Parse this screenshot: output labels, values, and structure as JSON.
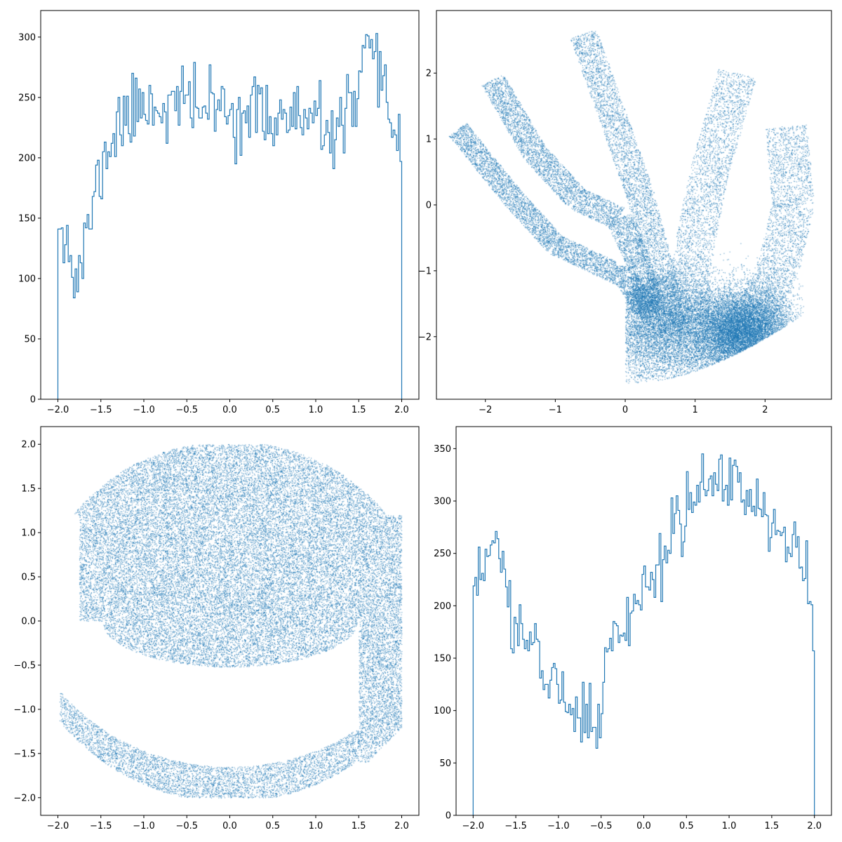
{
  "chart_data": [
    {
      "type": "histogram",
      "panel": "top-left",
      "histtype": "step",
      "color": "#1f77b4",
      "xlim": [
        -2.2,
        2.2
      ],
      "ylim": [
        0,
        322
      ],
      "xticks": [
        -2.0,
        -1.5,
        -1.0,
        -0.5,
        0.0,
        0.5,
        1.0,
        1.5,
        2.0
      ],
      "xtick_labels": [
        "−2.0",
        "−1.5",
        "−1.0",
        "−0.5",
        "0.0",
        "0.5",
        "1.0",
        "1.5",
        "2.0"
      ],
      "yticks": [
        0,
        50,
        100,
        150,
        200,
        250,
        300
      ],
      "ytick_labels": [
        "0",
        "50",
        "100",
        "150",
        "200",
        "250",
        "300"
      ],
      "bin_range": [
        -2.0,
        2.0
      ],
      "knots": [
        [
          -2.0,
          160
        ],
        [
          -1.9,
          140
        ],
        [
          -1.85,
          112
        ],
        [
          -1.8,
          95
        ],
        [
          -1.75,
          108
        ],
        [
          -1.7,
          118
        ],
        [
          -1.6,
          160
        ],
        [
          -1.5,
          188
        ],
        [
          -1.4,
          210
        ],
        [
          -1.3,
          228
        ],
        [
          -1.1,
          238
        ],
        [
          -1.0,
          248
        ],
        [
          -0.8,
          242
        ],
        [
          -0.5,
          246
        ],
        [
          0.0,
          238
        ],
        [
          0.5,
          235
        ],
        [
          1.0,
          228
        ],
        [
          1.15,
          215
        ],
        [
          1.3,
          232
        ],
        [
          1.45,
          240
        ],
        [
          1.6,
          285
        ],
        [
          1.7,
          268
        ],
        [
          1.8,
          250
        ],
        [
          1.9,
          232
        ],
        [
          2.0,
          210
        ]
      ],
      "bins": 200,
      "seed": 11,
      "noise": 15
    },
    {
      "type": "scatter",
      "panel": "top-right",
      "marker": "pixel",
      "color": "#1f77b4",
      "xlim": [
        -2.7,
        2.95
      ],
      "ylim": [
        -2.95,
        2.95
      ],
      "xticks": [
        -2,
        -1,
        0,
        1,
        2
      ],
      "xtick_labels": [
        "−2",
        "−1",
        "0",
        "1",
        "2"
      ],
      "yticks": [
        -2,
        -1,
        0,
        1,
        2
      ],
      "ytick_labels": [
        "−2",
        "−1",
        "0",
        "1",
        "2"
      ],
      "clusters": [
        {
          "x": 1.7,
          "y": -1.9,
          "sx": 0.35,
          "sy": 0.3,
          "n": 9000
        },
        {
          "x": 1.0,
          "y": -2.0,
          "sx": 0.7,
          "sy": 0.45,
          "n": 9000
        },
        {
          "x": 0.3,
          "y": -1.5,
          "sx": 0.3,
          "sy": 0.5,
          "n": 4000
        }
      ],
      "bands": [
        {
          "path": [
            [
              -2.4,
              1.15
            ],
            [
              -1.6,
              0.1
            ],
            [
              -1.0,
              -0.6
            ],
            [
              -0.4,
              -0.9
            ],
            [
              0.0,
              -1.1
            ],
            [
              0.3,
              -1.6
            ]
          ],
          "width": 0.16,
          "n": 4500
        },
        {
          "path": [
            [
              -1.9,
              1.9
            ],
            [
              -1.3,
              0.8
            ],
            [
              -0.7,
              0.1
            ],
            [
              -0.1,
              -0.2
            ],
            [
              0.2,
              -0.9
            ],
            [
              0.4,
              -1.7
            ]
          ],
          "width": 0.18,
          "n": 5000
        },
        {
          "path": [
            [
              -0.6,
              2.6
            ],
            [
              -0.2,
              1.4
            ],
            [
              0.2,
              0.2
            ],
            [
              0.5,
              -1.0
            ],
            [
              0.7,
              -2.0
            ]
          ],
          "width": 0.2,
          "n": 4000
        },
        {
          "path": [
            [
              1.6,
              2.0
            ],
            [
              1.2,
              0.5
            ],
            [
              0.95,
              -0.8
            ],
            [
              0.9,
              -1.8
            ]
          ],
          "width": 0.28,
          "n": 3000
        },
        {
          "path": [
            [
              2.3,
              1.2
            ],
            [
              2.4,
              0.0
            ],
            [
              2.2,
              -0.9
            ],
            [
              1.9,
              -1.6
            ]
          ],
          "width": 0.3,
          "n": 2500
        }
      ],
      "seed": 5
    },
    {
      "type": "scatter",
      "panel": "bottom-left",
      "marker": "pixel",
      "color": "#1f77b4",
      "xlim": [
        -2.2,
        2.2
      ],
      "ylim": [
        -2.2,
        2.2
      ],
      "xticks": [
        -2.0,
        -1.5,
        -1.0,
        -0.5,
        0.0,
        0.5,
        1.0,
        1.5,
        2.0
      ],
      "xtick_labels": [
        "−2.0",
        "−1.5",
        "−1.0",
        "−0.5",
        "0.0",
        "0.5",
        "1.0",
        "1.5",
        "2.0"
      ],
      "yticks": [
        -2.0,
        -1.5,
        -1.0,
        -0.5,
        0.0,
        0.5,
        1.0,
        1.5,
        2.0
      ],
      "ytick_labels": [
        "−2.0",
        "−1.5",
        "−1.0",
        "−0.5",
        "0.0",
        "0.5",
        "1.0",
        "1.5",
        "2.0"
      ],
      "n": 60000,
      "seed": 23
    },
    {
      "type": "histogram",
      "panel": "bottom-right",
      "histtype": "step",
      "color": "#1f77b4",
      "xlim": [
        -2.2,
        2.2
      ],
      "ylim": [
        0,
        371
      ],
      "xticks": [
        -2.0,
        -1.5,
        -1.0,
        -0.5,
        0.0,
        0.5,
        1.0,
        1.5,
        2.0
      ],
      "xtick_labels": [
        "−2.0",
        "−1.5",
        "−1.0",
        "−0.5",
        "0.0",
        "0.5",
        "1.0",
        "1.5",
        "2.0"
      ],
      "yticks": [
        0,
        50,
        100,
        150,
        200,
        250,
        300,
        350
      ],
      "ytick_labels": [
        "0",
        "50",
        "100",
        "150",
        "200",
        "250",
        "300",
        "350"
      ],
      "bin_range": [
        -2.0,
        2.0
      ],
      "knots": [
        [
          -2.0,
          210
        ],
        [
          -1.9,
          232
        ],
        [
          -1.75,
          262
        ],
        [
          -1.65,
          238
        ],
        [
          -1.5,
          178
        ],
        [
          -1.3,
          158
        ],
        [
          -1.0,
          128
        ],
        [
          -0.8,
          100
        ],
        [
          -0.65,
          85
        ],
        [
          -0.55,
          75
        ],
        [
          -0.45,
          140
        ],
        [
          -0.3,
          178
        ],
        [
          -0.1,
          200
        ],
        [
          0.2,
          245
        ],
        [
          0.5,
          290
        ],
        [
          0.8,
          318
        ],
        [
          1.0,
          320
        ],
        [
          1.3,
          302
        ],
        [
          1.6,
          268
        ],
        [
          1.8,
          248
        ],
        [
          1.9,
          218
        ],
        [
          2.0,
          185
        ]
      ],
      "bins": 200,
      "seed": 31,
      "noise": 15
    }
  ]
}
